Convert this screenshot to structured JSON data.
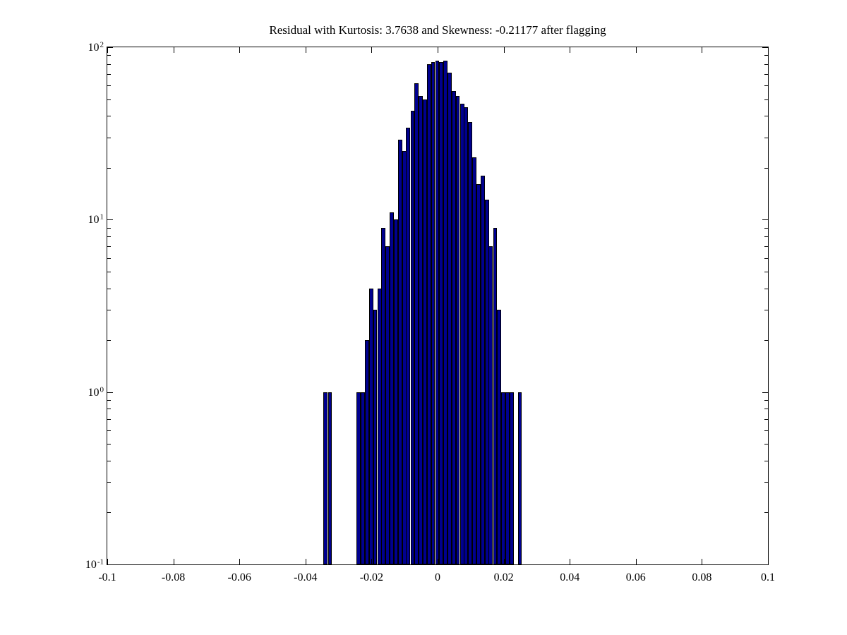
{
  "page": {
    "background": "#ffffff"
  },
  "chart_data": {
    "type": "bar",
    "title": "Residual with Kurtosis: 3.7638 and Skewness: -0.21177 after flagging",
    "xlabel": "",
    "ylabel": "",
    "yscale": "log",
    "grid": false,
    "legend": false,
    "bar_color": "#00008f",
    "bar_edge_color": "#000000",
    "bin_width": 0.00125,
    "x": [
      -0.0339,
      -0.0326,
      -0.0314,
      -0.0301,
      -0.0289,
      -0.0276,
      -0.0264,
      -0.0251,
      -0.0239,
      -0.0226,
      -0.0214,
      -0.0201,
      -0.0189,
      -0.0176,
      -0.0164,
      -0.0151,
      -0.0139,
      -0.0126,
      -0.0114,
      -0.0101,
      -0.0089,
      -0.0076,
      -0.0064,
      -0.0051,
      -0.0039,
      -0.0026,
      -0.0014,
      -0.0001,
      0.0011,
      0.0024,
      0.0036,
      0.0049,
      0.0061,
      0.0074,
      0.0086,
      0.0099,
      0.0111,
      0.0124,
      0.0136,
      0.0149,
      0.0161,
      0.0174,
      0.0186,
      0.0199,
      0.0211,
      0.0224,
      0.0236,
      0.0249
    ],
    "counts": [
      1,
      1,
      0,
      0,
      0,
      0,
      0,
      0,
      1,
      1,
      2,
      4,
      3,
      4,
      9,
      7,
      11,
      10,
      29,
      25,
      34,
      43,
      62,
      52,
      50,
      80,
      82,
      84,
      82,
      84,
      71,
      56,
      52,
      47,
      45,
      37,
      23,
      16,
      18,
      13,
      7,
      9,
      3,
      1,
      1,
      1,
      0,
      1
    ],
    "axes": {
      "xlim": [
        -0.1,
        0.1
      ],
      "ylog_exponent_range": [
        -1,
        2
      ],
      "xtick_values": [
        -0.1,
        -0.08,
        -0.06,
        -0.04,
        -0.02,
        0,
        0.02,
        0.04,
        0.06,
        0.08,
        0.1
      ],
      "xtick_labels": [
        "-0.1",
        "-0.08",
        "-0.06",
        "-0.04",
        "-0.02",
        "0",
        "0.02",
        "0.04",
        "0.06",
        "0.08",
        "0.1"
      ],
      "ytick_exponents": [
        -1,
        0,
        1,
        2
      ],
      "ytick_label_base": "10",
      "ytick_label_exponents": [
        "-1",
        "0",
        "1",
        "2"
      ],
      "y_minor_multiples": [
        2,
        3,
        4,
        5,
        6,
        7,
        8,
        9
      ]
    }
  }
}
